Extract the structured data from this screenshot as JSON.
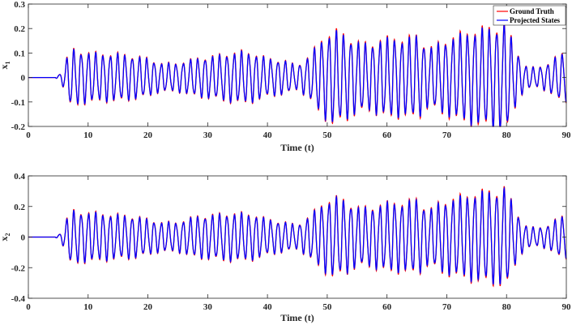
{
  "chart_data": [
    {
      "type": "line",
      "title": "",
      "xlabel": "Time (t)",
      "ylabel_base": "x",
      "ylabel_sub": "1",
      "xlim": [
        0,
        90
      ],
      "ylim": [
        -0.2,
        0.3
      ],
      "x_ticks": [
        0,
        10,
        20,
        30,
        40,
        50,
        60,
        70,
        80,
        90
      ],
      "x_tick_labels": [
        "0",
        "10",
        "20",
        "30",
        "40",
        "50",
        "60",
        "70",
        "80",
        "90"
      ],
      "y_ticks": [
        -0.2,
        -0.1,
        0,
        0.1,
        0.2,
        0.3
      ],
      "y_tick_labels": [
        "-0.2",
        "-0.1",
        "0",
        "0.1",
        "0.2",
        "0.3"
      ],
      "grid": false,
      "legend": {
        "placement": "top-right",
        "entries": [
          "Ground Truth",
          "Projected States"
        ]
      },
      "series": [
        {
          "name": "Ground Truth",
          "color": "#ff0000"
        },
        {
          "name": "Projected States",
          "color": "#0000ff"
        }
      ],
      "envelope": {
        "x": [
          0,
          4.5,
          5.5,
          7,
          9,
          12,
          15,
          18,
          20,
          22,
          25,
          28,
          31,
          33,
          36,
          38,
          40,
          43,
          45,
          47,
          49,
          51,
          53,
          55,
          57,
          59,
          61,
          63,
          65,
          67,
          69,
          71,
          73,
          75,
          77,
          79,
          80,
          81,
          83,
          85,
          87,
          89,
          90
        ],
        "amp": [
          0,
          0,
          0.02,
          0.12,
          0.11,
          0.1,
          0.1,
          0.09,
          0.08,
          0.06,
          0.06,
          0.08,
          0.09,
          0.1,
          0.11,
          0.1,
          0.08,
          0.07,
          0.05,
          0.09,
          0.16,
          0.2,
          0.18,
          0.15,
          0.14,
          0.16,
          0.17,
          0.16,
          0.18,
          0.12,
          0.15,
          0.17,
          0.19,
          0.2,
          0.21,
          0.22,
          0.23,
          0.15,
          0.05,
          0.04,
          0.06,
          0.1,
          0.1
        ]
      }
    },
    {
      "type": "line",
      "title": "",
      "xlabel": "Time (t)",
      "ylabel_base": "x",
      "ylabel_sub": "2",
      "xlim": [
        0,
        90
      ],
      "ylim": [
        -0.4,
        0.4
      ],
      "x_ticks": [
        0,
        10,
        20,
        30,
        40,
        50,
        60,
        70,
        80,
        90
      ],
      "x_tick_labels": [
        "0",
        "10",
        "20",
        "30",
        "40",
        "50",
        "60",
        "70",
        "80",
        "90"
      ],
      "y_ticks": [
        -0.4,
        -0.2,
        0,
        0.2,
        0.4
      ],
      "y_tick_labels": [
        "-0.4",
        "-0.2",
        "0",
        "0.2",
        "0.4"
      ],
      "grid": false,
      "legend": {
        "placement": "none",
        "entries": []
      },
      "series": [
        {
          "name": "Ground Truth",
          "color": "#ff0000"
        },
        {
          "name": "Projected States",
          "color": "#0000ff"
        }
      ],
      "envelope": {
        "x": [
          0,
          4.5,
          5.5,
          7,
          9,
          12,
          15,
          18,
          20,
          22,
          25,
          28,
          31,
          33,
          36,
          38,
          40,
          43,
          45,
          47,
          49,
          51,
          53,
          55,
          57,
          59,
          61,
          63,
          65,
          67,
          69,
          71,
          73,
          75,
          77,
          79,
          80,
          81,
          83,
          85,
          87,
          89,
          90
        ],
        "amp": [
          0,
          0,
          0.03,
          0.18,
          0.17,
          0.16,
          0.15,
          0.14,
          0.12,
          0.1,
          0.1,
          0.14,
          0.15,
          0.16,
          0.16,
          0.15,
          0.12,
          0.1,
          0.08,
          0.14,
          0.22,
          0.27,
          0.25,
          0.2,
          0.2,
          0.22,
          0.24,
          0.23,
          0.26,
          0.18,
          0.24,
          0.26,
          0.28,
          0.3,
          0.31,
          0.32,
          0.34,
          0.22,
          0.08,
          0.06,
          0.08,
          0.14,
          0.14
        ]
      }
    }
  ]
}
